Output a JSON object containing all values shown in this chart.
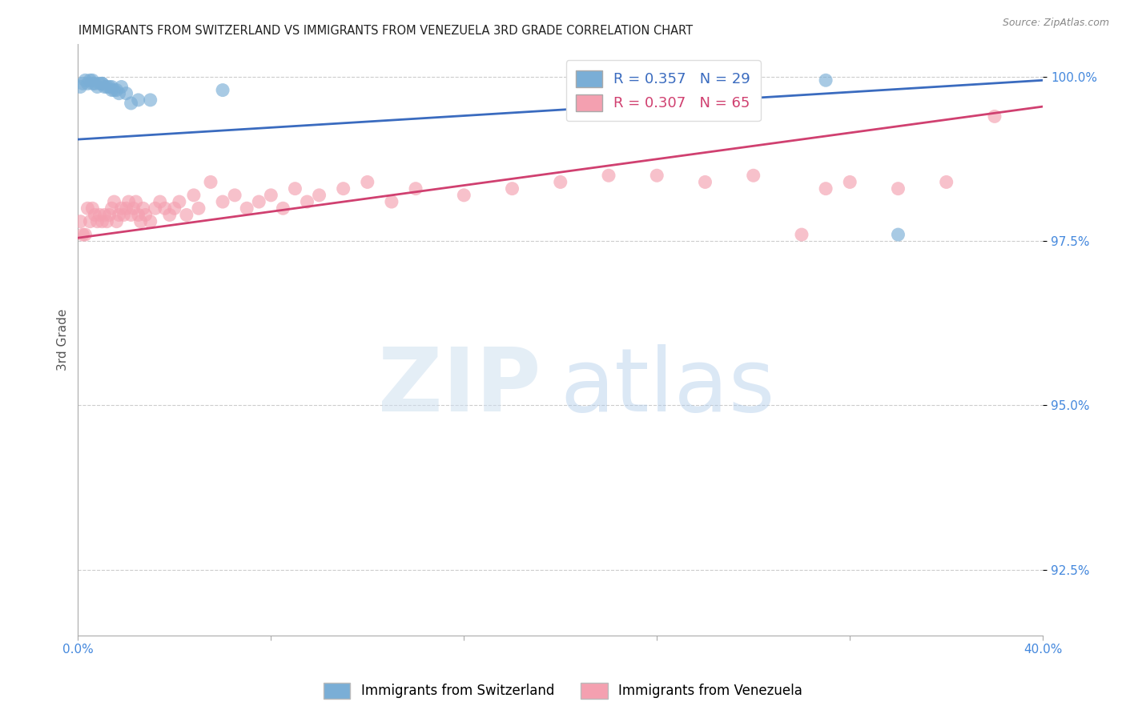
{
  "title": "IMMIGRANTS FROM SWITZERLAND VS IMMIGRANTS FROM VENEZUELA 3RD GRADE CORRELATION CHART",
  "source": "Source: ZipAtlas.com",
  "ylabel": "3rd Grade",
  "xlim": [
    0.0,
    0.4
  ],
  "ylim": [
    0.915,
    1.005
  ],
  "ytick_vals": [
    0.925,
    0.95,
    0.975,
    1.0
  ],
  "ytick_labels": [
    "92.5%",
    "95.0%",
    "97.5%",
    "100.0%"
  ],
  "grid_color": "#cccccc",
  "switzerland_color": "#7aaed6",
  "venezuela_color": "#f4a0b0",
  "line_switzerland_color": "#3a6bbf",
  "line_venezuela_color": "#d04070",
  "R_switzerland": 0.357,
  "N_switzerland": 29,
  "R_venezuela": 0.307,
  "N_venezuela": 65,
  "background_color": "#ffffff",
  "sw_line_x0": 0.0,
  "sw_line_y0": 0.9905,
  "sw_line_x1": 0.4,
  "sw_line_y1": 0.9995,
  "ve_line_x0": 0.0,
  "ve_line_y0": 0.9755,
  "ve_line_x1": 0.4,
  "ve_line_y1": 0.9955,
  "switzerland_x": [
    0.001,
    0.002,
    0.003,
    0.004,
    0.005,
    0.006,
    0.006,
    0.007,
    0.008,
    0.009,
    0.01,
    0.01,
    0.011,
    0.012,
    0.013,
    0.014,
    0.014,
    0.015,
    0.016,
    0.017,
    0.018,
    0.02,
    0.022,
    0.025,
    0.03,
    0.06,
    0.22,
    0.31,
    0.34
  ],
  "switzerland_y": [
    0.9985,
    0.999,
    0.9995,
    0.999,
    0.9995,
    0.9995,
    0.999,
    0.999,
    0.9985,
    0.999,
    0.999,
    0.999,
    0.9985,
    0.9985,
    0.9985,
    0.9985,
    0.998,
    0.998,
    0.998,
    0.9975,
    0.9985,
    0.9975,
    0.996,
    0.9965,
    0.9965,
    0.998,
    1.0,
    0.9995,
    0.976
  ],
  "venezuela_x": [
    0.001,
    0.002,
    0.003,
    0.004,
    0.005,
    0.006,
    0.007,
    0.008,
    0.009,
    0.01,
    0.011,
    0.012,
    0.013,
    0.014,
    0.015,
    0.016,
    0.017,
    0.018,
    0.019,
    0.02,
    0.021,
    0.022,
    0.023,
    0.024,
    0.025,
    0.026,
    0.027,
    0.028,
    0.03,
    0.032,
    0.034,
    0.036,
    0.038,
    0.04,
    0.042,
    0.045,
    0.048,
    0.05,
    0.055,
    0.06,
    0.065,
    0.07,
    0.075,
    0.08,
    0.085,
    0.09,
    0.095,
    0.1,
    0.11,
    0.12,
    0.13,
    0.14,
    0.16,
    0.18,
    0.2,
    0.22,
    0.24,
    0.26,
    0.28,
    0.3,
    0.31,
    0.32,
    0.34,
    0.36,
    0.38
  ],
  "venezuela_y": [
    0.978,
    0.976,
    0.976,
    0.98,
    0.978,
    0.98,
    0.979,
    0.978,
    0.979,
    0.978,
    0.979,
    0.978,
    0.979,
    0.98,
    0.981,
    0.978,
    0.979,
    0.98,
    0.979,
    0.98,
    0.981,
    0.979,
    0.98,
    0.981,
    0.979,
    0.978,
    0.98,
    0.979,
    0.978,
    0.98,
    0.981,
    0.98,
    0.979,
    0.98,
    0.981,
    0.979,
    0.982,
    0.98,
    0.984,
    0.981,
    0.982,
    0.98,
    0.981,
    0.982,
    0.98,
    0.983,
    0.981,
    0.982,
    0.983,
    0.984,
    0.981,
    0.983,
    0.982,
    0.983,
    0.984,
    0.985,
    0.985,
    0.984,
    0.985,
    0.976,
    0.983,
    0.984,
    0.983,
    0.984,
    0.994
  ]
}
